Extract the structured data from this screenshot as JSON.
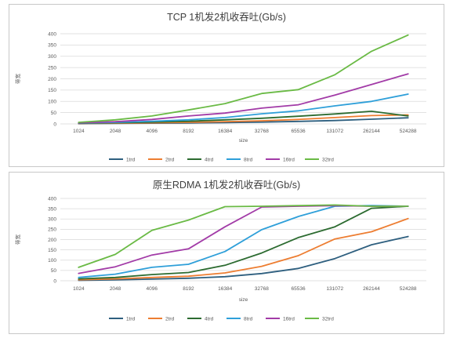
{
  "chart_data": [
    {
      "type": "line",
      "title": "TCP  1机发2机收吞吐(Gb/s)",
      "xlabel": "size",
      "ylabel": "带宽",
      "categories": [
        "1024",
        "2048",
        "4096",
        "8192",
        "16384",
        "32768",
        "65536",
        "131072",
        "262144",
        "524288"
      ],
      "ylim": [
        0,
        400
      ],
      "yticks": [
        0,
        50,
        100,
        150,
        200,
        250,
        300,
        350,
        400
      ],
      "grid": true,
      "legend_position": "bottom",
      "series": [
        {
          "name": "1trd",
          "color": "#2e5f7f",
          "values": [
            1,
            2,
            3,
            4,
            6,
            8,
            11,
            15,
            21,
            27
          ]
        },
        {
          "name": "2trd",
          "color": "#ed7d31",
          "values": [
            2,
            3,
            5,
            7,
            10,
            14,
            20,
            28,
            37,
            40
          ]
        },
        {
          "name": "4trd",
          "color": "#2c6b30",
          "values": [
            3,
            5,
            8,
            12,
            18,
            25,
            34,
            44,
            56,
            35
          ]
        },
        {
          "name": "8trd",
          "color": "#2e9fd9",
          "values": [
            4,
            7,
            12,
            18,
            28,
            45,
            58,
            80,
            100,
            132
          ]
        },
        {
          "name": "16trd",
          "color": "#a23ba7",
          "values": [
            5,
            10,
            20,
            35,
            48,
            70,
            85,
            128,
            175,
            222
          ]
        },
        {
          "name": "32trd",
          "color": "#6aba45",
          "values": [
            7,
            18,
            35,
            62,
            90,
            135,
            152,
            218,
            322,
            394
          ]
        }
      ]
    },
    {
      "type": "line",
      "title": "原生RDMA 1机发2机收吞吐(Gb/s)",
      "xlabel": "size",
      "ylabel": "带宽",
      "categories": [
        "1024",
        "2048",
        "4096",
        "8192",
        "16384",
        "32768",
        "65536",
        "131072",
        "262144",
        "524288"
      ],
      "ylim": [
        0,
        400
      ],
      "yticks": [
        0,
        50,
        100,
        150,
        200,
        250,
        300,
        350,
        400
      ],
      "grid": true,
      "legend_position": "bottom",
      "series": [
        {
          "name": "1trd",
          "color": "#2e5f7f",
          "values": [
            2,
            4,
            8,
            12,
            20,
            35,
            60,
            108,
            175,
            215
          ]
        },
        {
          "name": "2trd",
          "color": "#ed7d31",
          "values": [
            5,
            9,
            16,
            22,
            38,
            70,
            122,
            203,
            238,
            302
          ]
        },
        {
          "name": "4trd",
          "color": "#2c6b30",
          "values": [
            9,
            16,
            30,
            40,
            75,
            135,
            210,
            262,
            352,
            362
          ]
        },
        {
          "name": "8trd",
          "color": "#2e9fd9",
          "values": [
            16,
            32,
            65,
            80,
            142,
            248,
            312,
            362,
            365,
            362
          ]
        },
        {
          "name": "16trd",
          "color": "#a23ba7",
          "values": [
            36,
            68,
            125,
            155,
            262,
            358,
            362,
            365,
            362,
            362
          ]
        },
        {
          "name": "32trd",
          "color": "#6aba45",
          "values": [
            65,
            128,
            245,
            295,
            360,
            362,
            365,
            368,
            362,
            362
          ]
        }
      ]
    }
  ]
}
